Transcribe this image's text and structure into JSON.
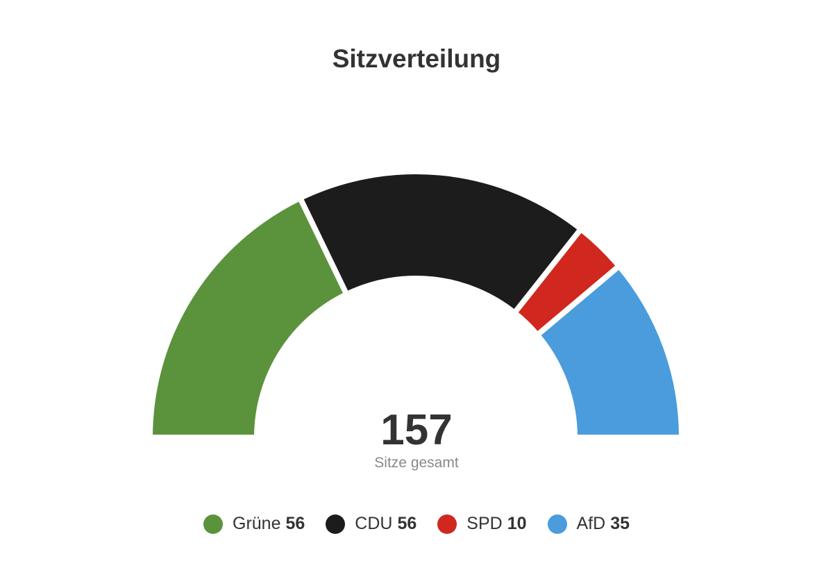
{
  "chart_data": {
    "type": "semidonut",
    "title": "Sitzverteilung",
    "categories": [
      "Grüne",
      "CDU",
      "SPD",
      "AfD"
    ],
    "values": [
      56,
      56,
      10,
      35
    ],
    "colors": [
      "#5b933c",
      "#1c1c1c",
      "#d0281f",
      "#4a9cdc"
    ],
    "total": 157,
    "total_label": "Sitze gesamt"
  }
}
